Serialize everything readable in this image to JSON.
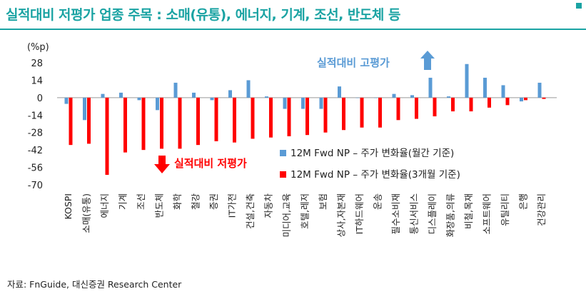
{
  "header": {
    "title": "실적대비 저평가 업종 주목 : 소매(유통), 에너지, 기계, 조선, 반도체 등"
  },
  "footer": {
    "source": "자료: FnGuide, 대신증권 Research Center"
  },
  "colors": {
    "title": "#1aa3a3",
    "series_1m": "#5a9bd5",
    "series_3m": "#ff0000"
  },
  "chart_data": {
    "type": "bar",
    "ylabel": "(%p)",
    "ylim": [
      -70,
      28
    ],
    "yticks": [
      28,
      14,
      0,
      -14,
      -28,
      -42,
      -56,
      -70
    ],
    "categories": [
      "KOSPI",
      "소매(유통)",
      "에너지",
      "기계",
      "조선",
      "반도체",
      "화학",
      "철강",
      "증권",
      "IT가전",
      "건설,건축",
      "자동차",
      "미디어,교육",
      "호텔,레저",
      "보험",
      "상사,자본재",
      "IT하드웨어",
      "운송",
      "필수소비재",
      "통신서비스",
      "디스플레이",
      "화장품,의류",
      "비철,목재",
      "소프트웨어",
      "유틸리티",
      "은행",
      "건강관리"
    ],
    "series": [
      {
        "name": "12M Fwd NP – 주가 변화율(월간 기준)",
        "values": [
          -5,
          -18,
          3,
          4,
          -2,
          -10,
          12,
          4,
          -2,
          6,
          14,
          1,
          -9,
          -9,
          -9,
          9,
          0,
          0,
          3,
          2,
          16,
          1,
          27,
          16,
          10,
          -3,
          12
        ]
      },
      {
        "name": "12M Fwd NP – 주가 변화율(3개월 기준)",
        "values": [
          -38,
          -37,
          -62,
          -44,
          -42,
          -41,
          -41,
          -38,
          -35,
          -36,
          -33,
          -32,
          -31,
          -30,
          -28,
          -26,
          -24,
          -24,
          -18,
          -17,
          -15,
          -11,
          -11,
          -8,
          -6,
          -2,
          -1
        ]
      }
    ],
    "annotations": {
      "high": "실적대비 고평가",
      "low": "실적대비 저평가"
    },
    "legend_position": "right-middle",
    "grid": false
  }
}
